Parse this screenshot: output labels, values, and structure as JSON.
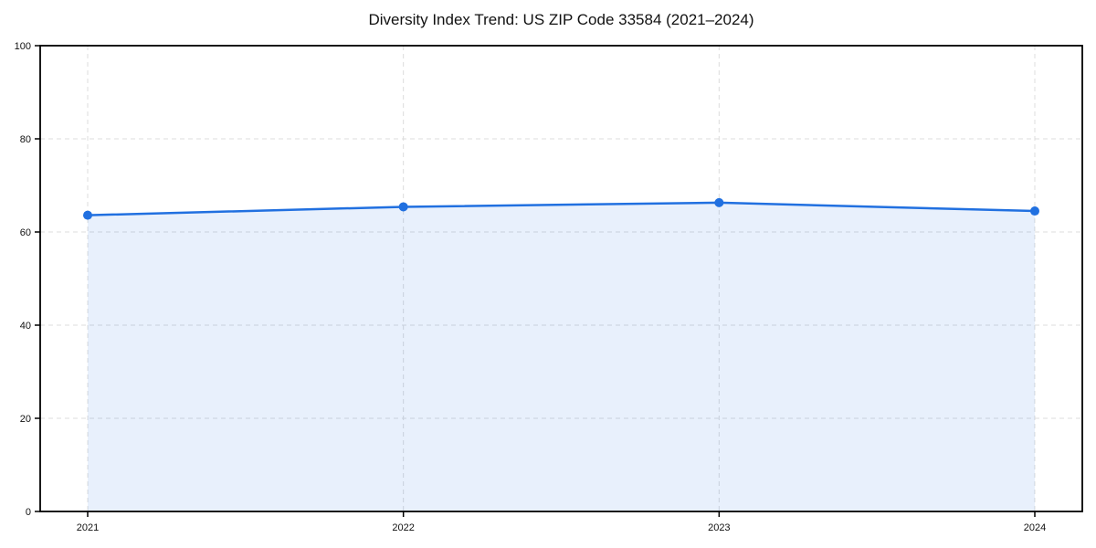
{
  "chart_data": {
    "type": "area",
    "title": "Diversity Index Trend: US ZIP Code 33584 (2021–2024)",
    "categories": [
      "2021",
      "2022",
      "2023",
      "2024"
    ],
    "series": [
      {
        "name": "Diversity Index",
        "values": [
          63.6,
          65.4,
          66.3,
          64.5
        ]
      }
    ],
    "xlabel": "",
    "ylabel": "",
    "ylim": [
      0,
      100
    ],
    "yticks": [
      0,
      20,
      40,
      60,
      80,
      100
    ],
    "grid": true,
    "grid_style": "dashed",
    "legend": "none",
    "colors": {
      "line": "#2170e0",
      "marker": "#2170e0",
      "fill": "#2170e0",
      "fill_opacity": 0.1,
      "grid": "#dcdcdc",
      "spine": "#000000",
      "text": "#111111"
    }
  }
}
